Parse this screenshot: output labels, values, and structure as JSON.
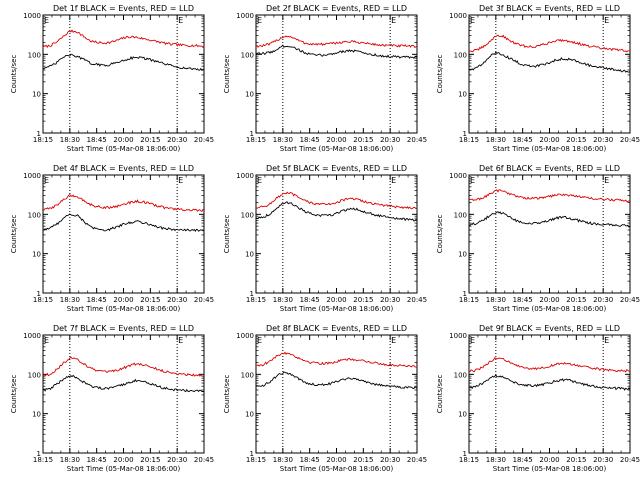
{
  "colors": {
    "events": "#000000",
    "lld": "#dd0000",
    "axis": "#000000",
    "background": "#ffffff"
  },
  "common": {
    "ylabel": "Counts/sec",
    "xlabel": "Start Time (05-Mar-08 18:06:00)",
    "xticks": [
      "18:15",
      "18:30",
      "18:45",
      "20:00",
      "20:15",
      "20:30",
      "20:45"
    ],
    "yticks": [
      1,
      10,
      100,
      1000
    ],
    "marker_labels": [
      "E",
      "E"
    ],
    "marker_positions": [
      1,
      5
    ],
    "ylim": [
      1,
      1000
    ],
    "yscale": "log"
  },
  "chart_data": [
    {
      "type": "line",
      "title": "Det 1f BLACK = Events, RED = LLD",
      "x": [
        0,
        0.25,
        0.5,
        0.75,
        1,
        1.25,
        1.5,
        1.75,
        2,
        2.25,
        2.5,
        2.75,
        3,
        3.25,
        3.5,
        3.75,
        4,
        4.25,
        4.5,
        4.75,
        5,
        5.25,
        5.5,
        5.75,
        6
      ],
      "series": [
        {
          "key": "lld",
          "values": [
            155,
            165,
            200,
            280,
            390,
            380,
            290,
            220,
            200,
            195,
            200,
            225,
            260,
            280,
            270,
            250,
            230,
            210,
            195,
            180,
            175,
            170,
            168,
            165,
            160
          ]
        },
        {
          "key": "events",
          "values": [
            45,
            48,
            60,
            85,
            95,
            90,
            75,
            60,
            55,
            52,
            55,
            62,
            70,
            80,
            85,
            80,
            72,
            65,
            58,
            52,
            48,
            45,
            43,
            42,
            40
          ]
        }
      ]
    },
    {
      "type": "line",
      "title": "Det 2f BLACK = Events, RED = LLD",
      "x": [
        0,
        0.25,
        0.5,
        0.75,
        1,
        1.25,
        1.5,
        1.75,
        2,
        2.25,
        2.5,
        2.75,
        3,
        3.25,
        3.5,
        3.75,
        4,
        4.25,
        4.5,
        4.75,
        5,
        5.25,
        5.5,
        5.75,
        6
      ],
      "series": [
        {
          "key": "lld",
          "values": [
            160,
            165,
            180,
            220,
            280,
            290,
            240,
            200,
            185,
            180,
            180,
            185,
            195,
            205,
            210,
            205,
            195,
            185,
            175,
            170,
            168,
            165,
            163,
            160,
            158
          ]
        },
        {
          "key": "events",
          "values": [
            100,
            105,
            110,
            130,
            160,
            165,
            140,
            115,
            100,
            95,
            95,
            100,
            110,
            120,
            125,
            120,
            110,
            100,
            95,
            90,
            88,
            86,
            85,
            84,
            82
          ]
        }
      ]
    },
    {
      "type": "line",
      "title": "Det 3f BLACK = Events, RED = LLD",
      "x": [
        0,
        0.25,
        0.5,
        0.75,
        1,
        1.25,
        1.5,
        1.75,
        2,
        2.25,
        2.5,
        2.75,
        3,
        3.25,
        3.5,
        3.75,
        4,
        4.25,
        4.5,
        4.75,
        5,
        5.25,
        5.5,
        5.75,
        6
      ],
      "series": [
        {
          "key": "lld",
          "values": [
            120,
            125,
            150,
            200,
            300,
            290,
            230,
            185,
            165,
            155,
            160,
            175,
            200,
            225,
            230,
            215,
            195,
            175,
            160,
            150,
            140,
            135,
            130,
            125,
            120
          ]
        },
        {
          "key": "events",
          "values": [
            40,
            45,
            55,
            85,
            110,
            100,
            80,
            65,
            55,
            50,
            50,
            55,
            62,
            72,
            78,
            75,
            68,
            60,
            52,
            48,
            45,
            42,
            40,
            38,
            36
          ]
        }
      ]
    },
    {
      "type": "line",
      "title": "Det 4f BLACK = Events, RED = LLD",
      "x": [
        0,
        0.25,
        0.5,
        0.75,
        1,
        1.25,
        1.5,
        1.75,
        2,
        2.25,
        2.5,
        2.75,
        3,
        3.25,
        3.5,
        3.75,
        4,
        4.25,
        4.5,
        4.75,
        5,
        5.25,
        5.5,
        5.75,
        6
      ],
      "series": [
        {
          "key": "lld",
          "values": [
            130,
            140,
            170,
            230,
            300,
            290,
            230,
            180,
            160,
            150,
            150,
            160,
            180,
            200,
            215,
            205,
            185,
            165,
            150,
            140,
            135,
            130,
            128,
            125,
            125
          ]
        },
        {
          "key": "events",
          "values": [
            40,
            45,
            55,
            80,
            100,
            95,
            70,
            48,
            42,
            40,
            42,
            48,
            55,
            62,
            66,
            62,
            55,
            48,
            44,
            42,
            40,
            40,
            39,
            39,
            38
          ]
        }
      ]
    },
    {
      "type": "line",
      "title": "Det 5f BLACK = Events, RED = LLD",
      "x": [
        0,
        0.25,
        0.5,
        0.75,
        1,
        1.25,
        1.5,
        1.75,
        2,
        2.25,
        2.5,
        2.75,
        3,
        3.25,
        3.5,
        3.75,
        4,
        4.25,
        4.5,
        4.75,
        5,
        5.25,
        5.5,
        5.75,
        6
      ],
      "series": [
        {
          "key": "lld",
          "values": [
            150,
            155,
            180,
            250,
            330,
            350,
            290,
            230,
            200,
            185,
            180,
            185,
            200,
            230,
            250,
            240,
            215,
            195,
            180,
            170,
            160,
            155,
            150,
            148,
            145
          ]
        },
        {
          "key": "events",
          "values": [
            80,
            85,
            100,
            140,
            185,
            200,
            165,
            125,
            105,
            95,
            92,
            95,
            105,
            125,
            140,
            135,
            118,
            105,
            95,
            88,
            82,
            78,
            75,
            72,
            70
          ]
        }
      ]
    },
    {
      "type": "line",
      "title": "Det 6f BLACK = Events, RED = LLD",
      "x": [
        0,
        0.25,
        0.5,
        0.75,
        1,
        1.25,
        1.5,
        1.75,
        2,
        2.25,
        2.5,
        2.75,
        3,
        3.25,
        3.5,
        3.75,
        4,
        4.25,
        4.5,
        4.75,
        5,
        5.25,
        5.5,
        5.75,
        6
      ],
      "series": [
        {
          "key": "lld",
          "values": [
            230,
            235,
            260,
            320,
            400,
            400,
            340,
            290,
            265,
            255,
            255,
            265,
            285,
            310,
            320,
            310,
            290,
            270,
            255,
            245,
            240,
            235,
            230,
            225,
            220
          ]
        },
        {
          "key": "events",
          "values": [
            55,
            58,
            68,
            90,
            110,
            108,
            88,
            70,
            62,
            58,
            58,
            62,
            70,
            80,
            85,
            80,
            72,
            65,
            60,
            57,
            55,
            54,
            53,
            52,
            50
          ]
        }
      ]
    },
    {
      "type": "line",
      "title": "Det 7f BLACK = Events, RED = LLD",
      "x": [
        0,
        0.25,
        0.5,
        0.75,
        1,
        1.25,
        1.5,
        1.75,
        2,
        2.25,
        2.5,
        2.75,
        3,
        3.25,
        3.5,
        3.75,
        4,
        4.25,
        4.5,
        4.75,
        5,
        5.25,
        5.5,
        5.75,
        6
      ],
      "series": [
        {
          "key": "lld",
          "values": [
            95,
            100,
            130,
            190,
            260,
            250,
            190,
            145,
            125,
            115,
            115,
            125,
            145,
            170,
            185,
            175,
            155,
            135,
            120,
            110,
            105,
            100,
            98,
            95,
            95
          ]
        },
        {
          "key": "events",
          "values": [
            40,
            42,
            55,
            75,
            90,
            85,
            65,
            52,
            46,
            43,
            44,
            48,
            56,
            64,
            70,
            66,
            58,
            50,
            45,
            42,
            40,
            39,
            38,
            38,
            37
          ]
        }
      ]
    },
    {
      "type": "line",
      "title": "Det 8f BLACK = Events, RED = LLD",
      "x": [
        0,
        0.25,
        0.5,
        0.75,
        1,
        1.25,
        1.5,
        1.75,
        2,
        2.25,
        2.5,
        2.75,
        3,
        3.25,
        3.5,
        3.75,
        4,
        4.25,
        4.5,
        4.75,
        5,
        5.25,
        5.5,
        5.75,
        6
      ],
      "series": [
        {
          "key": "lld",
          "values": [
            170,
            175,
            210,
            280,
            350,
            340,
            280,
            230,
            205,
            195,
            190,
            195,
            210,
            230,
            240,
            235,
            220,
            205,
            190,
            180,
            175,
            170,
            168,
            165,
            162
          ]
        },
        {
          "key": "events",
          "values": [
            50,
            52,
            62,
            88,
            110,
            105,
            82,
            66,
            58,
            55,
            55,
            58,
            66,
            75,
            80,
            76,
            68,
            60,
            55,
            52,
            50,
            48,
            47,
            46,
            45
          ]
        }
      ]
    },
    {
      "type": "line",
      "title": "Det 9f BLACK = Events, RED = LLD",
      "x": [
        0,
        0.25,
        0.5,
        0.75,
        1,
        1.25,
        1.5,
        1.75,
        2,
        2.25,
        2.5,
        2.75,
        3,
        3.25,
        3.5,
        3.75,
        4,
        4.25,
        4.5,
        4.75,
        5,
        5.25,
        5.5,
        5.75,
        6
      ],
      "series": [
        {
          "key": "lld",
          "values": [
            120,
            125,
            150,
            200,
            260,
            255,
            205,
            165,
            150,
            140,
            140,
            148,
            162,
            180,
            190,
            185,
            170,
            155,
            145,
            138,
            132,
            128,
            126,
            124,
            122
          ]
        },
        {
          "key": "events",
          "values": [
            45,
            48,
            58,
            78,
            92,
            90,
            75,
            60,
            55,
            52,
            52,
            55,
            60,
            68,
            72,
            70,
            62,
            56,
            52,
            48,
            46,
            45,
            44,
            43,
            42
          ]
        }
      ]
    }
  ]
}
